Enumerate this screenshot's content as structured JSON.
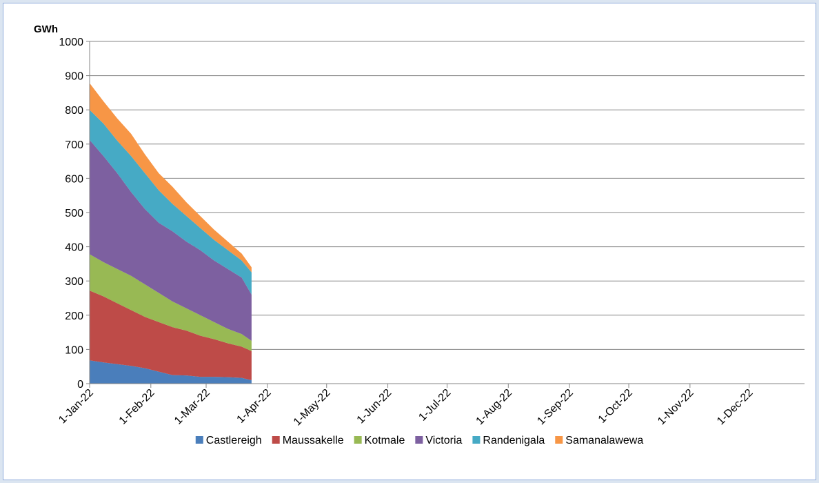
{
  "chart_data": {
    "type": "stacked-area",
    "y_label": "GWh",
    "x": [
      "2022-01-01",
      "2022-01-08",
      "2022-01-15",
      "2022-01-22",
      "2022-01-29",
      "2022-02-05",
      "2022-02-12",
      "2022-02-19",
      "2022-02-26",
      "2022-03-05",
      "2022-03-12",
      "2022-03-19",
      "2022-03-24"
    ],
    "series": [
      {
        "name": "Castlereigh",
        "color": "#4a7ebb",
        "values": [
          68,
          62,
          57,
          52,
          45,
          35,
          25,
          24,
          20,
          20,
          19,
          17,
          10
        ]
      },
      {
        "name": "Maussakelle",
        "color": "#be4b48",
        "values": [
          204,
          193,
          178,
          163,
          150,
          145,
          140,
          131,
          120,
          110,
          99,
          91,
          85
        ]
      },
      {
        "name": "Kotmale",
        "color": "#98b954",
        "values": [
          106,
          100,
          100,
          100,
          95,
          85,
          75,
          65,
          60,
          50,
          42,
          37,
          30
        ]
      },
      {
        "name": "Victoria",
        "color": "#7d60a0",
        "values": [
          334,
          310,
          280,
          245,
          220,
          205,
          205,
          195,
          190,
          180,
          175,
          165,
          135
        ]
      },
      {
        "name": "Randenigala",
        "color": "#46aac5",
        "values": [
          88,
          95,
          95,
          105,
          105,
          95,
          80,
          75,
          65,
          60,
          55,
          50,
          65
        ]
      },
      {
        "name": "Samanalawewa",
        "color": "#f79646",
        "values": [
          78,
          65,
          65,
          65,
          55,
          50,
          50,
          40,
          35,
          30,
          25,
          20,
          15
        ]
      }
    ],
    "xlim": [
      "2022-01-01",
      "2022-12-29"
    ],
    "xticks": [
      {
        "value": "2022-01-01",
        "label": "1-Jan-22"
      },
      {
        "value": "2022-02-01",
        "label": "1-Feb-22"
      },
      {
        "value": "2022-03-01",
        "label": "1-Mar-22"
      },
      {
        "value": "2022-04-01",
        "label": "1-Apr-22"
      },
      {
        "value": "2022-05-01",
        "label": "1-May-22"
      },
      {
        "value": "2022-06-01",
        "label": "1-Jun-22"
      },
      {
        "value": "2022-07-01",
        "label": "1-Jul-22"
      },
      {
        "value": "2022-08-01",
        "label": "1-Aug-22"
      },
      {
        "value": "2022-09-01",
        "label": "1-Sep-22"
      },
      {
        "value": "2022-10-01",
        "label": "1-Oct-22"
      },
      {
        "value": "2022-11-01",
        "label": "1-Nov-22"
      },
      {
        "value": "2022-12-01",
        "label": "1-Dec-22"
      }
    ],
    "ylim": [
      0,
      1000
    ],
    "yticks": [
      0,
      100,
      200,
      300,
      400,
      500,
      600,
      700,
      800,
      900,
      1000
    ],
    "grid": true,
    "legend": "bottom"
  }
}
